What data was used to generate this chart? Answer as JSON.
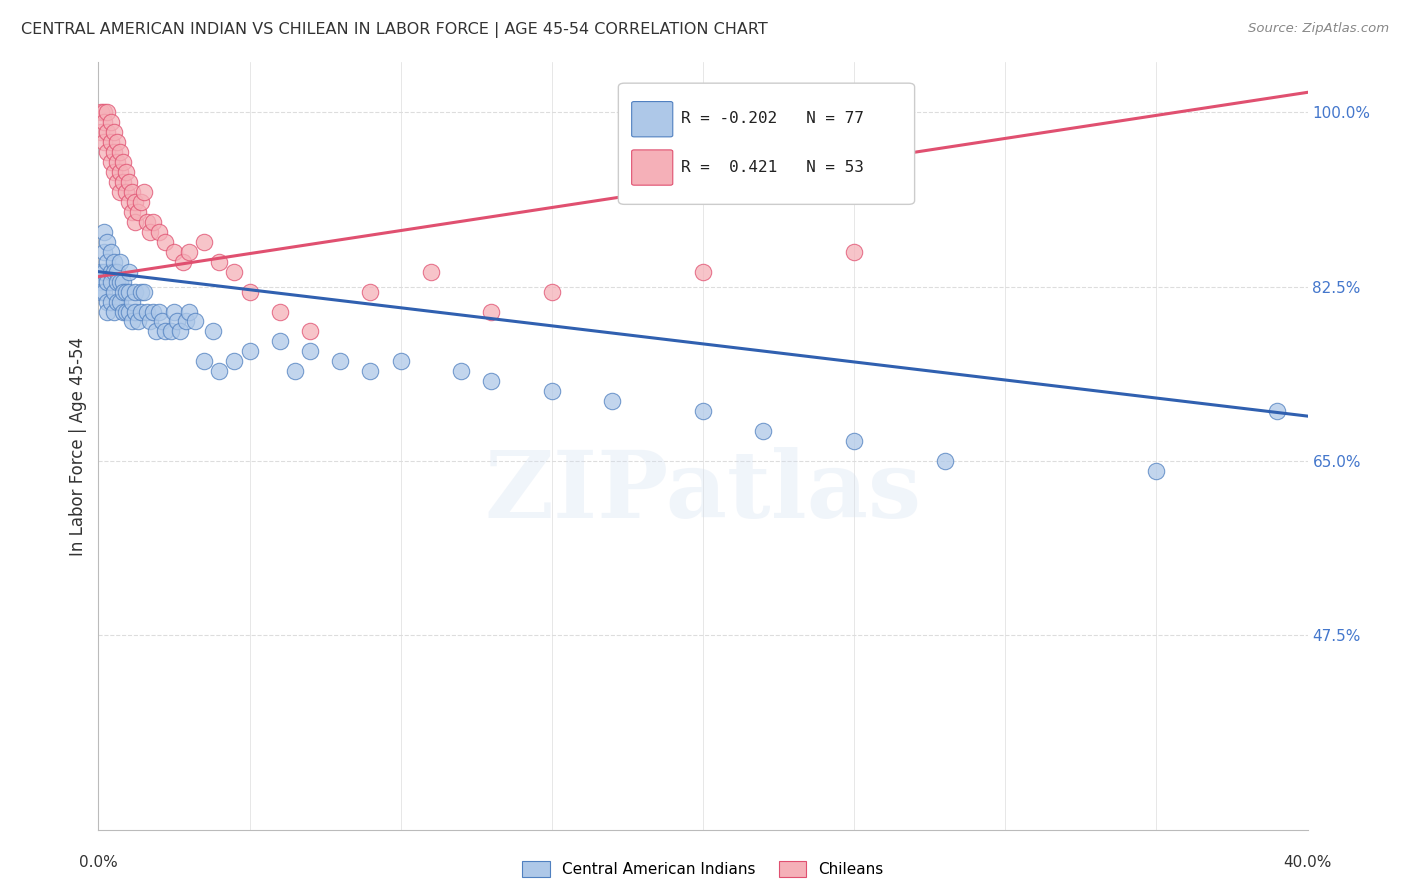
{
  "title": "CENTRAL AMERICAN INDIAN VS CHILEAN IN LABOR FORCE | AGE 45-54 CORRELATION CHART",
  "source": "Source: ZipAtlas.com",
  "ylabel": "In Labor Force | Age 45-54",
  "xmin": 0.0,
  "xmax": 0.4,
  "ymin": 0.28,
  "ymax": 1.05,
  "legend_blue_r": "-0.202",
  "legend_blue_n": "77",
  "legend_pink_r": "0.421",
  "legend_pink_n": "53",
  "legend_label_blue": "Central American Indians",
  "legend_label_pink": "Chileans",
  "blue_color": "#aec8e8",
  "pink_color": "#f5b0b8",
  "blue_edge_color": "#5080c0",
  "pink_edge_color": "#e05070",
  "blue_line_color": "#3060b0",
  "pink_line_color": "#e05070",
  "watermark": "ZIPatlas",
  "blue_scatter_x": [
    0.001,
    0.001,
    0.001,
    0.002,
    0.002,
    0.002,
    0.002,
    0.003,
    0.003,
    0.003,
    0.003,
    0.003,
    0.004,
    0.004,
    0.004,
    0.004,
    0.005,
    0.005,
    0.005,
    0.005,
    0.006,
    0.006,
    0.006,
    0.007,
    0.007,
    0.007,
    0.008,
    0.008,
    0.008,
    0.009,
    0.009,
    0.01,
    0.01,
    0.01,
    0.011,
    0.011,
    0.012,
    0.012,
    0.013,
    0.014,
    0.014,
    0.015,
    0.016,
    0.017,
    0.018,
    0.019,
    0.02,
    0.021,
    0.022,
    0.024,
    0.025,
    0.026,
    0.027,
    0.029,
    0.03,
    0.032,
    0.035,
    0.038,
    0.04,
    0.045,
    0.05,
    0.06,
    0.065,
    0.07,
    0.08,
    0.09,
    0.1,
    0.12,
    0.13,
    0.15,
    0.17,
    0.2,
    0.22,
    0.25,
    0.28,
    0.35,
    0.39
  ],
  "blue_scatter_y": [
    0.84,
    0.83,
    0.82,
    0.88,
    0.86,
    0.84,
    0.82,
    0.87,
    0.85,
    0.83,
    0.81,
    0.8,
    0.86,
    0.84,
    0.83,
    0.81,
    0.85,
    0.84,
    0.82,
    0.8,
    0.84,
    0.83,
    0.81,
    0.85,
    0.83,
    0.81,
    0.83,
    0.82,
    0.8,
    0.82,
    0.8,
    0.84,
    0.82,
    0.8,
    0.81,
    0.79,
    0.82,
    0.8,
    0.79,
    0.82,
    0.8,
    0.82,
    0.8,
    0.79,
    0.8,
    0.78,
    0.8,
    0.79,
    0.78,
    0.78,
    0.8,
    0.79,
    0.78,
    0.79,
    0.8,
    0.79,
    0.75,
    0.78,
    0.74,
    0.75,
    0.76,
    0.77,
    0.74,
    0.76,
    0.75,
    0.74,
    0.75,
    0.74,
    0.73,
    0.72,
    0.71,
    0.7,
    0.68,
    0.67,
    0.65,
    0.64,
    0.7
  ],
  "pink_scatter_x": [
    0.001,
    0.001,
    0.002,
    0.002,
    0.002,
    0.003,
    0.003,
    0.003,
    0.004,
    0.004,
    0.004,
    0.005,
    0.005,
    0.005,
    0.006,
    0.006,
    0.006,
    0.007,
    0.007,
    0.007,
    0.008,
    0.008,
    0.009,
    0.009,
    0.01,
    0.01,
    0.011,
    0.011,
    0.012,
    0.012,
    0.013,
    0.014,
    0.015,
    0.016,
    0.017,
    0.018,
    0.02,
    0.022,
    0.025,
    0.028,
    0.03,
    0.035,
    0.04,
    0.045,
    0.05,
    0.06,
    0.07,
    0.09,
    0.11,
    0.13,
    0.15,
    0.2,
    0.25
  ],
  "pink_scatter_y": [
    1.0,
    0.98,
    1.0,
    0.99,
    0.97,
    1.0,
    0.98,
    0.96,
    0.99,
    0.97,
    0.95,
    0.98,
    0.96,
    0.94,
    0.97,
    0.95,
    0.93,
    0.96,
    0.94,
    0.92,
    0.95,
    0.93,
    0.94,
    0.92,
    0.93,
    0.91,
    0.92,
    0.9,
    0.91,
    0.89,
    0.9,
    0.91,
    0.92,
    0.89,
    0.88,
    0.89,
    0.88,
    0.87,
    0.86,
    0.85,
    0.86,
    0.87,
    0.85,
    0.84,
    0.82,
    0.8,
    0.78,
    0.82,
    0.84,
    0.8,
    0.82,
    0.84,
    0.86
  ],
  "blue_trend_x": [
    0.0,
    0.4
  ],
  "blue_trend_y": [
    0.84,
    0.695
  ],
  "pink_trend_x": [
    0.0,
    0.4
  ],
  "pink_trend_y": [
    0.835,
    1.02
  ],
  "background_color": "#ffffff",
  "grid_color": "#dddddd",
  "ytick_positions": [
    0.475,
    0.65,
    0.825,
    1.0
  ],
  "ytick_labels": [
    "47.5%",
    "65.0%",
    "82.5%",
    "100.0%"
  ]
}
